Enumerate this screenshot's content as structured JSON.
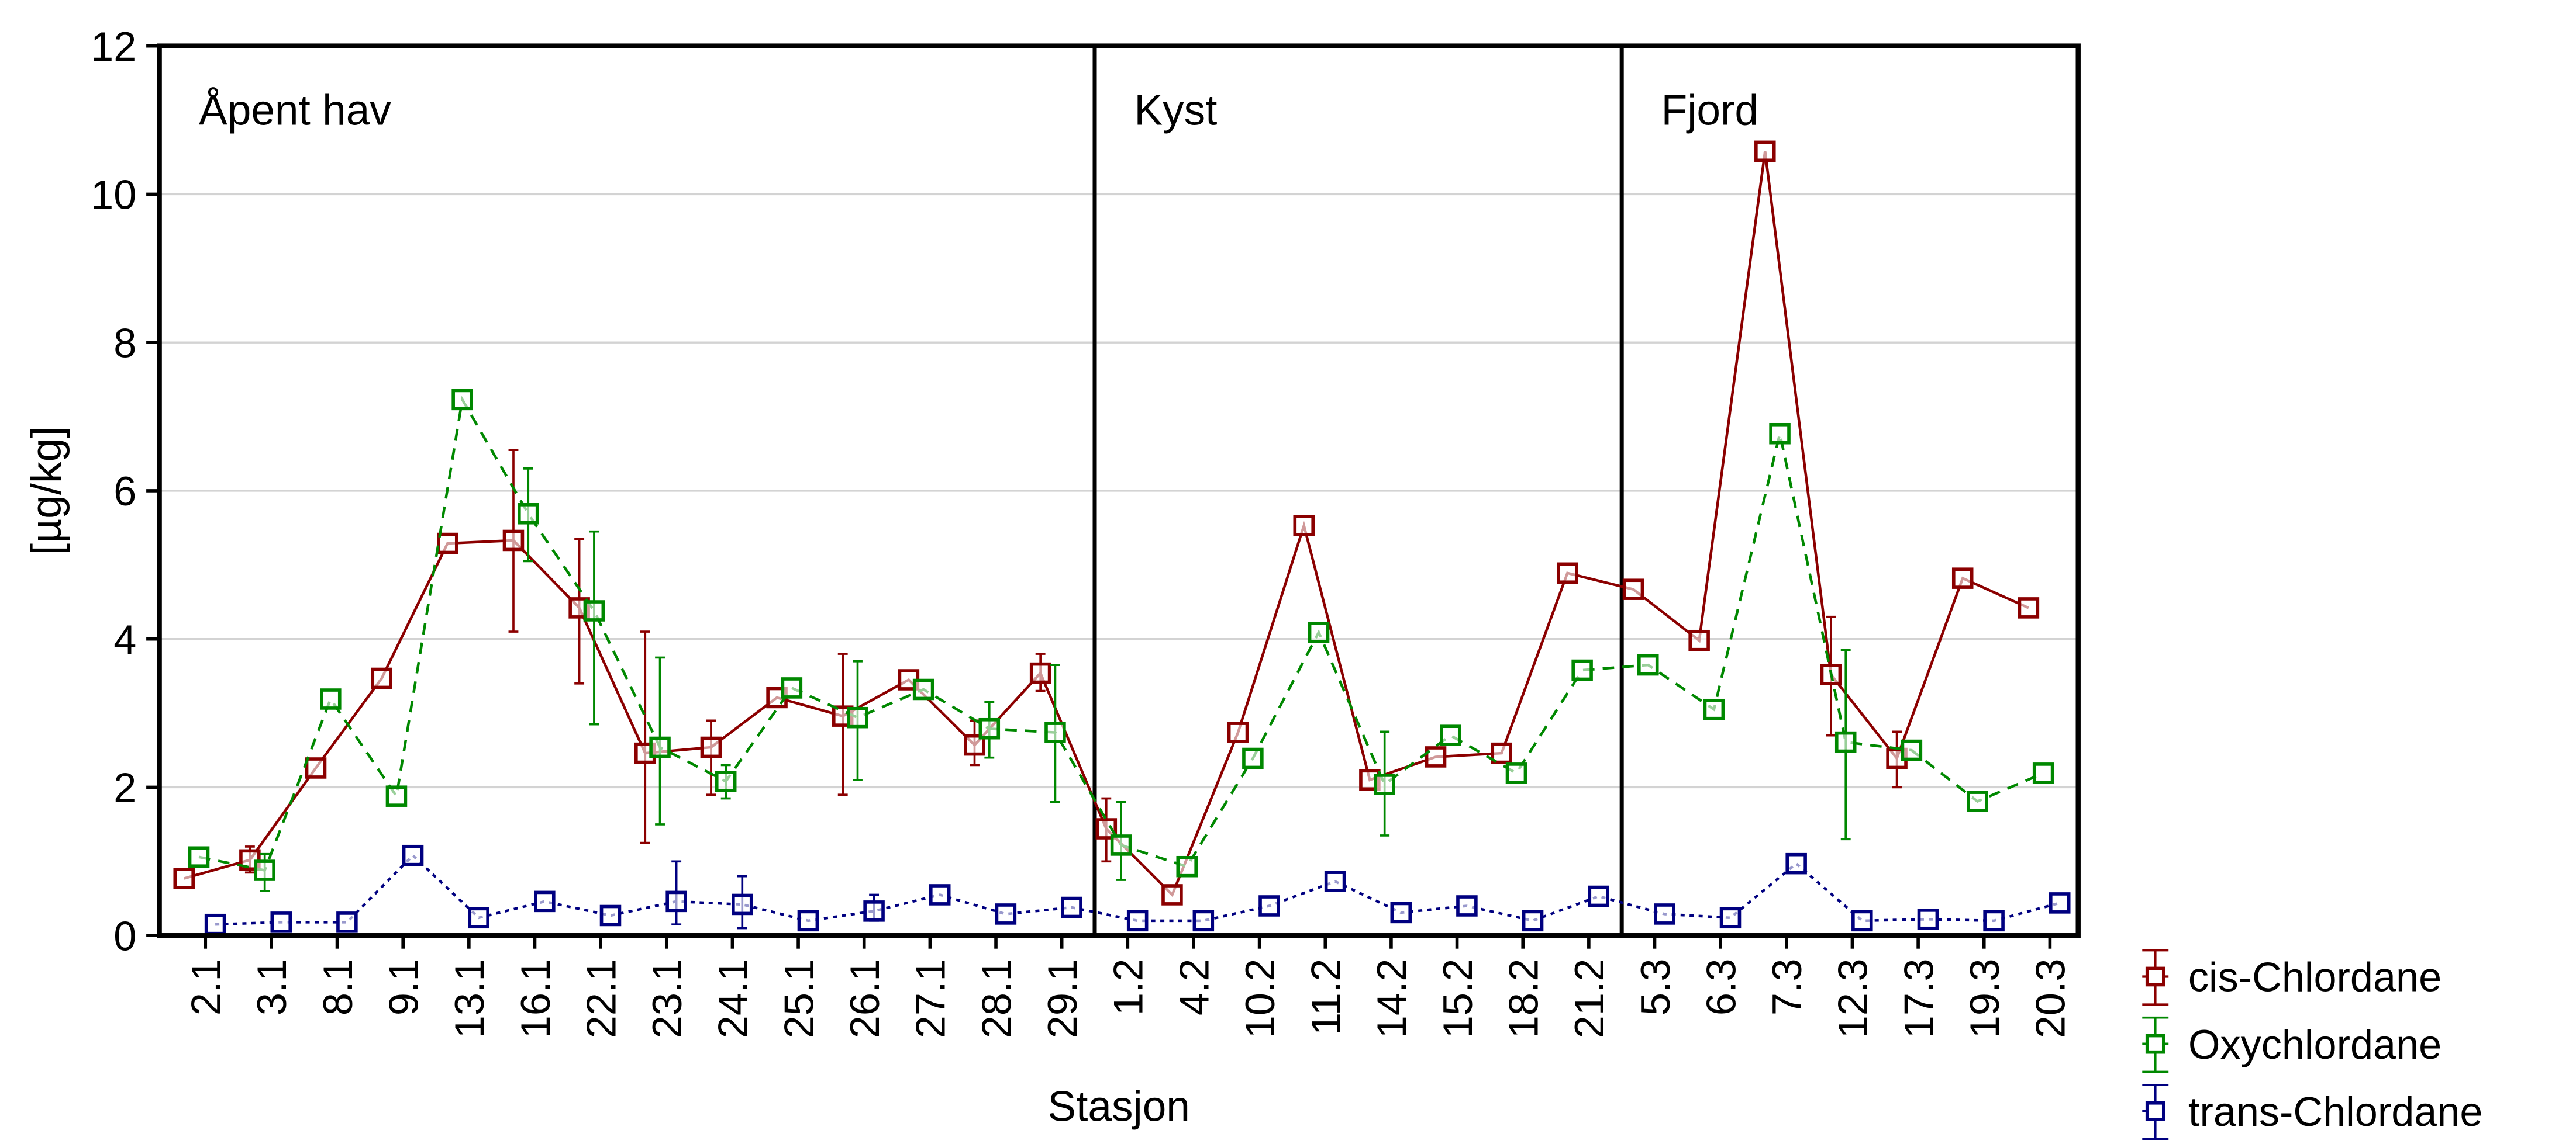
{
  "chart_data": {
    "type": "line",
    "xlabel": "Stasjon",
    "ylabel": "[µg/kg]",
    "ylim": [
      0,
      12
    ],
    "yticks": [
      "0",
      "2",
      "4",
      "6",
      "8",
      "10",
      "12"
    ],
    "grid": "horizontal",
    "legend_position": "bottom-right-outside",
    "categories": [
      "2.1",
      "3.1",
      "8.1",
      "9.1",
      "13.1",
      "16.1",
      "22.1",
      "23.1",
      "24.1",
      "25.1",
      "26.1",
      "27.1",
      "28.1",
      "29.1",
      "1.2",
      "4.2",
      "10.2",
      "11.2",
      "14.2",
      "15.2",
      "18.2",
      "21.2",
      "5.3",
      "6.3",
      "7.3",
      "12.3",
      "17.3",
      "19.3",
      "20.3"
    ],
    "panels": [
      {
        "label": "Åpent hav",
        "start": 0,
        "end": 13
      },
      {
        "label": "Kyst",
        "start": 14,
        "end": 21
      },
      {
        "label": "Fjord",
        "start": 22,
        "end": 28
      }
    ],
    "series": [
      {
        "name": "cis-Chlordane",
        "color": "#8b0000",
        "dash": "solid",
        "values": [
          0.77,
          1.02,
          2.26,
          3.47,
          5.29,
          5.33,
          4.42,
          2.46,
          2.54,
          3.21,
          2.96,
          3.45,
          2.57,
          3.54,
          1.44,
          0.55,
          2.74,
          5.53,
          2.1,
          2.41,
          2.46,
          4.89,
          4.67,
          3.98,
          10.58,
          3.52,
          2.39,
          4.82,
          4.42
        ],
        "errors": [
          null,
          [
            0.85,
            1.2
          ],
          null,
          null,
          null,
          [
            4.1,
            6.55
          ],
          [
            3.4,
            5.35
          ],
          [
            1.25,
            4.1
          ],
          [
            1.9,
            2.9
          ],
          null,
          [
            1.9,
            3.8
          ],
          null,
          [
            2.3,
            2.9
          ],
          [
            3.3,
            3.8
          ],
          [
            1.0,
            1.85
          ],
          null,
          null,
          null,
          null,
          null,
          null,
          null,
          null,
          null,
          null,
          [
            2.7,
            4.3
          ],
          [
            2.0,
            2.75
          ],
          null,
          null
        ]
      },
      {
        "name": "Oxychlordane",
        "color": "#008800",
        "dash": "dashed",
        "values": [
          1.06,
          0.88,
          3.19,
          1.88,
          7.23,
          5.69,
          4.38,
          2.54,
          2.08,
          3.34,
          2.94,
          3.32,
          2.79,
          2.74,
          1.22,
          0.93,
          2.39,
          4.09,
          2.04,
          2.7,
          2.19,
          3.58,
          3.65,
          3.05,
          6.77,
          2.61,
          2.5,
          1.81,
          2.19
        ],
        "errors": [
          null,
          [
            0.6,
            1.1
          ],
          null,
          null,
          null,
          [
            5.05,
            6.3
          ],
          [
            2.85,
            5.45
          ],
          [
            1.5,
            3.75
          ],
          [
            1.85,
            2.3
          ],
          null,
          [
            2.1,
            3.7
          ],
          null,
          [
            2.4,
            3.15
          ],
          [
            1.8,
            3.65
          ],
          [
            0.75,
            1.8
          ],
          null,
          null,
          null,
          [
            1.35,
            2.75
          ],
          null,
          null,
          null,
          null,
          null,
          null,
          [
            1.3,
            3.85
          ],
          null,
          null,
          null
        ]
      },
      {
        "name": "trans-Chlordane",
        "color": "#000080",
        "dash": "dotted",
        "values": [
          0.15,
          0.18,
          0.18,
          1.08,
          0.24,
          0.46,
          0.27,
          0.46,
          0.42,
          0.2,
          0.33,
          0.55,
          0.29,
          0.38,
          0.2,
          0.2,
          0.4,
          0.73,
          0.31,
          0.4,
          0.2,
          0.53,
          0.29,
          0.24,
          0.97,
          0.2,
          0.22,
          0.2,
          0.44
        ],
        "errors": [
          null,
          null,
          null,
          null,
          null,
          null,
          null,
          [
            0.15,
            1.0
          ],
          [
            0.1,
            0.8
          ],
          null,
          [
            0.2,
            0.55
          ],
          null,
          null,
          null,
          null,
          null,
          null,
          null,
          null,
          null,
          null,
          null,
          null,
          null,
          null,
          null,
          null,
          null,
          null
        ]
      }
    ]
  }
}
